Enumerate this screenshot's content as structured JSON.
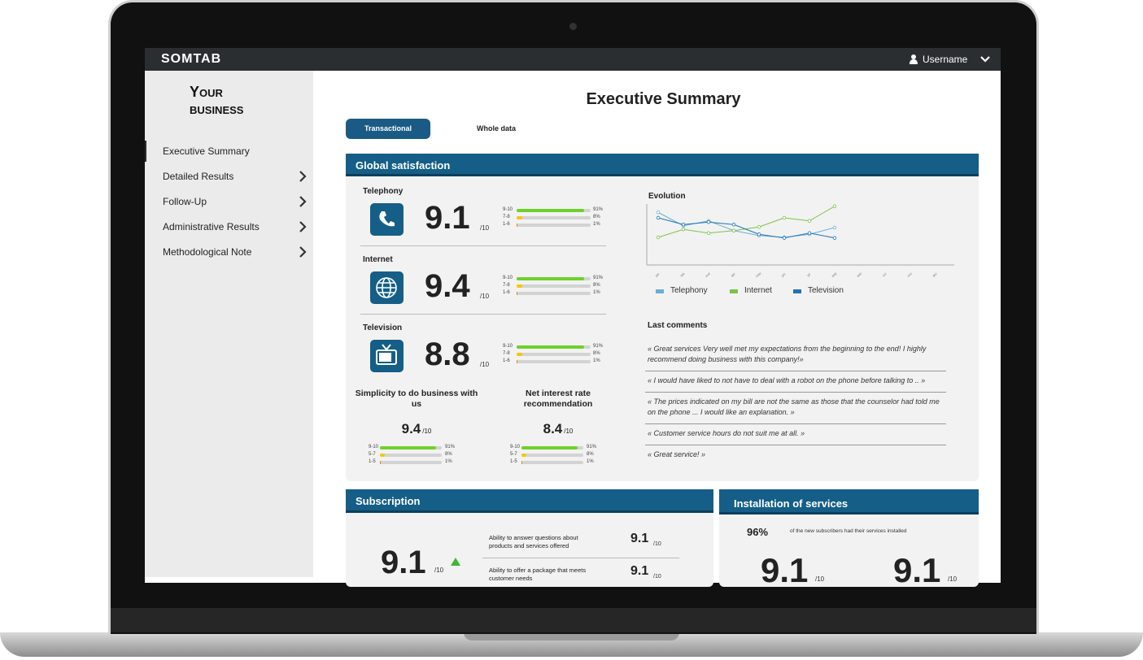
{
  "brand": "SOMTAB",
  "user": "Username",
  "sidebar": {
    "logo": [
      "Your",
      "business"
    ],
    "nav": [
      "Executive Summary",
      "Detailed Results",
      "Follow-Up",
      "Administrative Results",
      "Methodological Note"
    ]
  },
  "title": "Executive Summary",
  "tabs": [
    "Transactional",
    "Whole data"
  ],
  "global": {
    "title": "Global satisfaction",
    "services": [
      {
        "name": "Telephony",
        "score": 9.1,
        "scale": "/10",
        "bars": [
          {
            "label": "9-10",
            "value": 91,
            "value_label": "91%"
          },
          {
            "label": "7-8",
            "value": 8,
            "value_label": "8%"
          },
          {
            "label": "1-6",
            "value": 1,
            "value_label": "1%"
          }
        ]
      },
      {
        "name": "Internet",
        "score": 9.4,
        "scale": "/10",
        "bars": [
          {
            "label": "9-10",
            "value": 91,
            "value_label": "91%"
          },
          {
            "label": "7-8",
            "value": 8,
            "value_label": "8%"
          },
          {
            "label": "1-6",
            "value": 1,
            "value_label": "1%"
          }
        ]
      },
      {
        "name": "Television",
        "score": 8.8,
        "scale": "/10",
        "bars": [
          {
            "label": "9-10",
            "value": 91,
            "value_label": "91%"
          },
          {
            "label": "7-8",
            "value": 8,
            "value_label": "8%"
          },
          {
            "label": "1-6",
            "value": 1,
            "value_label": "1%"
          }
        ]
      }
    ],
    "indicators": [
      {
        "name": "Simplicity to do business with us",
        "score": 9.4,
        "scale": "/10",
        "bars": [
          {
            "label": "9-10",
            "value": 91,
            "value_label": "91%"
          },
          {
            "label": "5-7",
            "value": 8,
            "value_label": "8%"
          },
          {
            "label": "1-5",
            "value": 1,
            "value_label": "1%"
          }
        ]
      },
      {
        "name": "Net interest rate recommendation",
        "score": 8.4,
        "scale": "/10",
        "bars": [
          {
            "label": "9-10",
            "value": 91,
            "value_label": "91%"
          },
          {
            "label": "5-7",
            "value": 8,
            "value_label": "8%"
          },
          {
            "label": "1-5",
            "value": 1,
            "value_label": "1%"
          }
        ]
      }
    ]
  },
  "chart_data": {
    "type": "line",
    "title": "Evolution",
    "categories": [
      "jan",
      "feb",
      "mar",
      "apr",
      "may",
      "jun",
      "jul",
      "aug",
      "sep",
      "oct",
      "nov",
      "dec"
    ],
    "ylim": [
      0,
      10
    ],
    "series": [
      {
        "name": "Telephony",
        "color": "#6aaed6",
        "values": [
          8.5,
          6.3,
          7.1,
          5.5,
          4.7,
          4.4,
          4.9,
          6.0,
          null,
          null,
          null,
          null
        ]
      },
      {
        "name": "Internet",
        "color": "#7dc24b",
        "values": [
          4.4,
          5.7,
          5.1,
          5.5,
          6.1,
          7.6,
          7.1,
          9.5,
          null,
          null,
          null,
          null
        ]
      },
      {
        "name": "Television",
        "color": "#1f73b7",
        "values": [
          7.6,
          6.5,
          6.9,
          6.5,
          4.9,
          4.3,
          5.1,
          4.3,
          null,
          null,
          null,
          null
        ]
      }
    ]
  },
  "comments": {
    "title": "Last comments",
    "items": [
      "« Great services Very well met my expectations from the beginning to the end! I highly recommend doing business with this company!»",
      "« I would have liked to not have to deal with a robot on the phone before talking to .. »",
      "« The prices indicated on my bill are not the same as those that the counselor had told me on the phone ... I would like an explanation. »",
      "« Customer service hours do not suit me at all. »",
      "« Great service! »"
    ]
  },
  "subscription": {
    "title": "Subscription",
    "score": 9.1,
    "scale": "/10",
    "items": [
      {
        "text": "Ability to answer questions about products and services offered",
        "score": 9.1,
        "scale": "/10"
      },
      {
        "text": "Ability to offer a package that meets customer needs",
        "score": 9.1,
        "scale": "/10"
      }
    ]
  },
  "installation": {
    "title": "Installation of services",
    "stat": "96%",
    "stat_text": "of the new subscribers had their services installed",
    "scores": [
      {
        "score": 9.1,
        "scale": "/10"
      },
      {
        "score": 9.1,
        "scale": "/10"
      }
    ]
  }
}
